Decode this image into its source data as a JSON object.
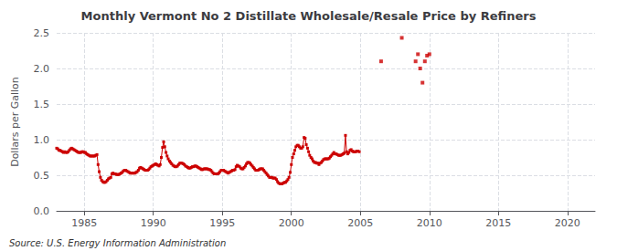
{
  "chart_data": {
    "type": "line",
    "title": "Monthly Vermont No 2 Distillate Wholesale/Resale Price by Refiners",
    "ylabel": "Dollars per Gallon",
    "annotation": "Source: U.S. Energy Information Administration",
    "xlim": [
      1983,
      2022
    ],
    "xticks": [
      1985,
      1990,
      1995,
      2000,
      2005,
      2010,
      2015,
      2020
    ],
    "ylim": [
      0.0,
      2.5
    ],
    "yticks": [
      {
        "value": 0.0,
        "label": "0.0"
      },
      0.5,
      {
        "value": 1.0,
        "label": "1.0"
      },
      1.5,
      {
        "value": 2.0,
        "label": "2.0"
      },
      2.5
    ],
    "grid": true,
    "series": [
      {
        "type": "line",
        "color": "#cc0000",
        "marker": "square",
        "line_style": "solid",
        "x": [
          1983.0,
          1983.08,
          1983.17,
          1983.25,
          1983.33,
          1983.42,
          1983.5,
          1983.58,
          1983.67,
          1983.75,
          1983.83,
          1983.92,
          1984.0,
          1984.08,
          1984.17,
          1984.25,
          1984.33,
          1984.42,
          1984.5,
          1984.58,
          1984.67,
          1984.75,
          1984.83,
          1984.92,
          1985.0,
          1985.08,
          1985.17,
          1985.25,
          1985.33,
          1985.42,
          1985.5,
          1985.58,
          1985.67,
          1985.75,
          1985.83,
          1985.92,
          1986.0,
          1986.08,
          1986.17,
          1986.25,
          1986.33,
          1986.42,
          1986.5,
          1986.58,
          1986.67,
          1986.75,
          1986.83,
          1986.92,
          1987.0,
          1987.08,
          1987.17,
          1987.25,
          1987.33,
          1987.42,
          1987.5,
          1987.58,
          1987.67,
          1987.75,
          1987.83,
          1987.92,
          1988.0,
          1988.08,
          1988.17,
          1988.25,
          1988.33,
          1988.42,
          1988.5,
          1988.58,
          1988.67,
          1988.75,
          1988.83,
          1988.92,
          1989.0,
          1989.08,
          1989.17,
          1989.25,
          1989.33,
          1989.42,
          1989.5,
          1989.58,
          1989.67,
          1989.75,
          1989.83,
          1989.92,
          1990.0,
          1990.08,
          1990.17,
          1990.25,
          1990.33,
          1990.42,
          1990.5,
          1990.58,
          1990.67,
          1990.75,
          1990.83,
          1990.92,
          1991.0,
          1991.08,
          1991.17,
          1991.25,
          1991.33,
          1991.42,
          1991.5,
          1991.58,
          1991.67,
          1991.75,
          1991.83,
          1991.92,
          1992.0,
          1992.08,
          1992.17,
          1992.25,
          1992.33,
          1992.42,
          1992.5,
          1992.58,
          1992.67,
          1992.75,
          1992.83,
          1992.92,
          1993.0,
          1993.08,
          1993.17,
          1993.25,
          1993.33,
          1993.42,
          1993.5,
          1993.58,
          1993.67,
          1993.75,
          1993.83,
          1993.92,
          1994.0,
          1994.08,
          1994.17,
          1994.25,
          1994.33,
          1994.42,
          1994.5,
          1994.58,
          1994.67,
          1994.75,
          1994.83,
          1994.92,
          1995.0,
          1995.08,
          1995.17,
          1995.25,
          1995.33,
          1995.42,
          1995.5,
          1995.58,
          1995.67,
          1995.75,
          1995.83,
          1995.92,
          1996.0,
          1996.08,
          1996.17,
          1996.25,
          1996.33,
          1996.42,
          1996.5,
          1996.58,
          1996.67,
          1996.75,
          1996.83,
          1996.92,
          1997.0,
          1997.08,
          1997.17,
          1997.25,
          1997.33,
          1997.42,
          1997.5,
          1997.58,
          1997.67,
          1997.75,
          1997.83,
          1997.92,
          1998.0,
          1998.08,
          1998.17,
          1998.25,
          1998.33,
          1998.42,
          1998.5,
          1998.58,
          1998.67,
          1998.75,
          1998.83,
          1998.92,
          1999.0,
          1999.08,
          1999.17,
          1999.25,
          1999.33,
          1999.42,
          1999.5,
          1999.58,
          1999.67,
          1999.75,
          1999.83,
          1999.92,
          2000.0,
          2000.08,
          2000.17,
          2000.25,
          2000.33,
          2000.42,
          2000.5,
          2000.58,
          2000.67,
          2000.75,
          2000.83,
          2000.92,
          2001.0,
          2001.08,
          2001.17,
          2001.25,
          2001.33,
          2001.42,
          2001.5,
          2001.58,
          2001.67,
          2001.75,
          2001.83,
          2001.92,
          2002.0,
          2002.08,
          2002.17,
          2002.25,
          2002.33,
          2002.42,
          2002.5,
          2002.58,
          2002.67,
          2002.75,
          2002.83,
          2002.92,
          2003.0,
          2003.08,
          2003.17,
          2003.25,
          2003.33,
          2003.42,
          2003.5,
          2003.58,
          2003.67,
          2003.75,
          2003.83,
          2003.92,
          2004.0,
          2004.08,
          2004.17,
          2004.25,
          2004.33,
          2004.42,
          2004.5,
          2004.58,
          2004.67,
          2004.75,
          2004.83,
          2004.92
        ],
        "values": [
          0.88,
          0.87,
          0.85,
          0.85,
          0.84,
          0.83,
          0.82,
          0.83,
          0.82,
          0.82,
          0.83,
          0.85,
          0.87,
          0.88,
          0.87,
          0.86,
          0.85,
          0.84,
          0.83,
          0.82,
          0.82,
          0.82,
          0.83,
          0.83,
          0.82,
          0.82,
          0.8,
          0.79,
          0.78,
          0.77,
          0.77,
          0.77,
          0.77,
          0.77,
          0.78,
          0.79,
          0.65,
          0.55,
          0.47,
          0.43,
          0.41,
          0.4,
          0.4,
          0.41,
          0.43,
          0.45,
          0.46,
          0.47,
          0.52,
          0.53,
          0.52,
          0.52,
          0.51,
          0.51,
          0.51,
          0.52,
          0.53,
          0.54,
          0.56,
          0.57,
          0.57,
          0.56,
          0.55,
          0.54,
          0.53,
          0.53,
          0.53,
          0.53,
          0.53,
          0.54,
          0.55,
          0.57,
          0.6,
          0.61,
          0.6,
          0.59,
          0.58,
          0.57,
          0.57,
          0.57,
          0.58,
          0.6,
          0.62,
          0.63,
          0.64,
          0.65,
          0.66,
          0.65,
          0.64,
          0.63,
          0.65,
          0.75,
          0.89,
          0.97,
          0.9,
          0.82,
          0.77,
          0.73,
          0.7,
          0.68,
          0.66,
          0.64,
          0.63,
          0.62,
          0.62,
          0.63,
          0.65,
          0.67,
          0.67,
          0.67,
          0.66,
          0.65,
          0.63,
          0.62,
          0.61,
          0.6,
          0.6,
          0.61,
          0.62,
          0.62,
          0.63,
          0.63,
          0.62,
          0.61,
          0.6,
          0.59,
          0.58,
          0.58,
          0.59,
          0.59,
          0.59,
          0.59,
          0.58,
          0.58,
          0.57,
          0.55,
          0.53,
          0.52,
          0.52,
          0.52,
          0.52,
          0.53,
          0.55,
          0.57,
          0.57,
          0.57,
          0.56,
          0.55,
          0.54,
          0.53,
          0.54,
          0.55,
          0.56,
          0.57,
          0.57,
          0.58,
          0.62,
          0.64,
          0.63,
          0.62,
          0.6,
          0.59,
          0.59,
          0.61,
          0.63,
          0.66,
          0.68,
          0.68,
          0.67,
          0.65,
          0.63,
          0.61,
          0.59,
          0.57,
          0.57,
          0.57,
          0.58,
          0.59,
          0.59,
          0.59,
          0.57,
          0.55,
          0.53,
          0.51,
          0.49,
          0.47,
          0.47,
          0.47,
          0.46,
          0.46,
          0.46,
          0.44,
          0.41,
          0.39,
          0.38,
          0.38,
          0.38,
          0.39,
          0.4,
          0.4,
          0.42,
          0.44,
          0.47,
          0.54,
          0.65,
          0.75,
          0.8,
          0.85,
          0.9,
          0.92,
          0.92,
          0.9,
          0.88,
          0.88,
          0.9,
          1.03,
          1.02,
          0.93,
          0.88,
          0.83,
          0.78,
          0.75,
          0.73,
          0.7,
          0.68,
          0.68,
          0.67,
          0.67,
          0.65,
          0.67,
          0.68,
          0.7,
          0.72,
          0.73,
          0.73,
          0.73,
          0.73,
          0.74,
          0.76,
          0.78,
          0.8,
          0.82,
          0.8,
          0.8,
          0.79,
          0.78,
          0.78,
          0.78,
          0.79,
          0.8,
          0.81,
          1.06,
          0.83,
          0.8,
          0.82,
          0.85,
          0.86,
          0.84,
          0.83,
          0.83,
          0.83,
          0.84,
          0.84,
          0.83
        ]
      },
      {
        "type": "scatter",
        "color": "#cc0000",
        "marker": "square",
        "x": [
          2006.5,
          2008.0,
          2009.0,
          2009.17,
          2009.33,
          2009.5,
          2009.67,
          2009.83,
          2010.0
        ],
        "values": [
          2.1,
          2.43,
          2.1,
          2.2,
          2.0,
          1.8,
          2.1,
          2.18,
          2.2
        ]
      }
    ]
  }
}
